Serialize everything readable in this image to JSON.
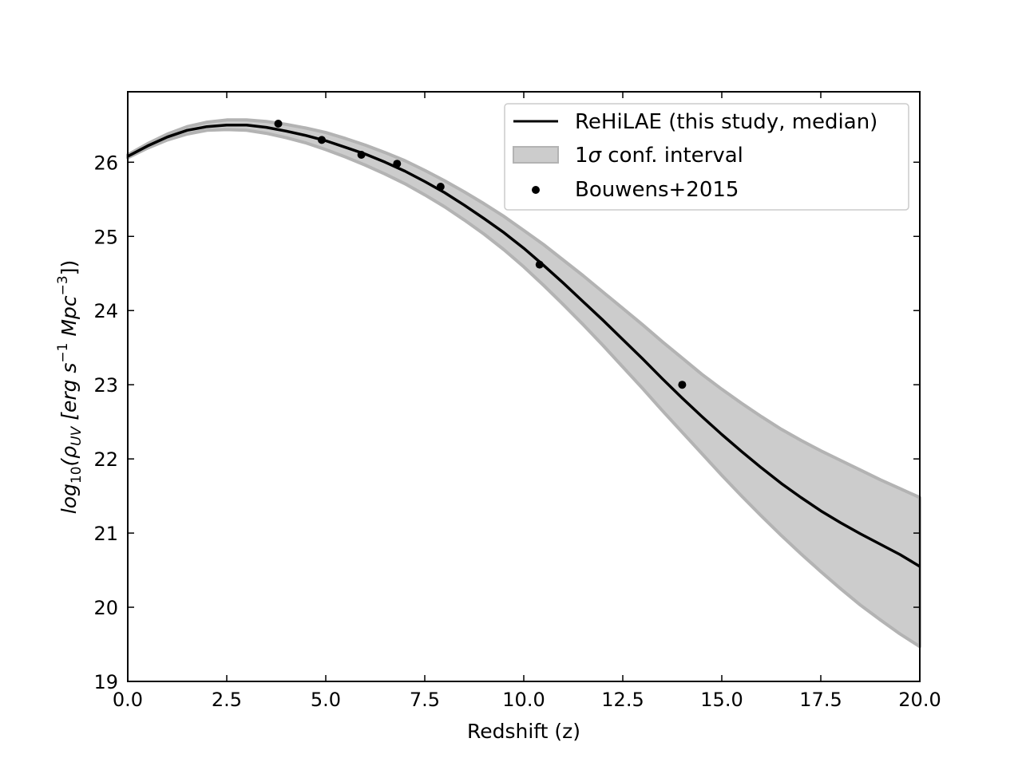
{
  "chart_data": {
    "type": "line",
    "xlabel": "Redshift (z)",
    "ylabel": {
      "prefix": "log",
      "log_sub": "10",
      "open": "(ρ",
      "rho_sub": "UV",
      "units_a": " [erg s",
      "sup1": "−1",
      "units_b": " Mpc",
      "sup2": "−3",
      "close": "])"
    },
    "xlim": [
      0.0,
      20.0
    ],
    "ylim": [
      19,
      26.95
    ],
    "xticks": [
      0.0,
      2.5,
      5.0,
      7.5,
      10.0,
      12.5,
      15.0,
      17.5,
      20.0
    ],
    "xtick_labels": [
      "0.0",
      "2.5",
      "5.0",
      "7.5",
      "10.0",
      "12.5",
      "15.0",
      "17.5",
      "20.0"
    ],
    "yticks": [
      19,
      20,
      21,
      22,
      23,
      24,
      25,
      26
    ],
    "ytick_labels": [
      "19",
      "20",
      "21",
      "22",
      "23",
      "24",
      "25",
      "26"
    ],
    "grid": false,
    "legend_position": "top-right",
    "colors": {
      "median": "#000000",
      "band_fill": "#cccccc",
      "band_edge": "#b3b3b3",
      "points": "#000000"
    },
    "series": [
      {
        "name": "ReHiLAE (this study, median)",
        "kind": "line",
        "x": [
          0.0,
          0.5,
          1.0,
          1.5,
          2.0,
          2.5,
          3.0,
          3.5,
          4.0,
          4.5,
          5.0,
          5.5,
          6.0,
          6.5,
          7.0,
          7.5,
          8.0,
          8.5,
          9.0,
          9.5,
          10.0,
          10.5,
          11.0,
          11.5,
          12.0,
          12.5,
          13.0,
          13.5,
          14.0,
          14.5,
          15.0,
          15.5,
          16.0,
          16.5,
          17.0,
          17.5,
          18.0,
          18.5,
          19.0,
          19.5,
          20.0
        ],
        "y": [
          26.08,
          26.22,
          26.34,
          26.43,
          26.48,
          26.5,
          26.5,
          26.47,
          26.42,
          26.36,
          26.29,
          26.2,
          26.11,
          26.0,
          25.88,
          25.74,
          25.59,
          25.42,
          25.24,
          25.05,
          24.84,
          24.61,
          24.37,
          24.12,
          23.87,
          23.61,
          23.35,
          23.08,
          22.82,
          22.57,
          22.33,
          22.1,
          21.88,
          21.67,
          21.48,
          21.3,
          21.14,
          20.99,
          20.85,
          20.71,
          20.55
        ]
      },
      {
        "name": "1σ conf. interval",
        "kind": "band",
        "x": [
          0.0,
          0.5,
          1.0,
          1.5,
          2.0,
          2.5,
          3.0,
          3.5,
          4.0,
          4.5,
          5.0,
          5.5,
          6.0,
          6.5,
          7.0,
          7.5,
          8.0,
          8.5,
          9.0,
          9.5,
          10.0,
          10.5,
          11.0,
          11.5,
          12.0,
          12.5,
          13.0,
          13.5,
          14.0,
          14.5,
          15.0,
          15.5,
          16.0,
          16.5,
          17.0,
          17.5,
          18.0,
          18.5,
          19.0,
          19.5,
          20.0
        ],
        "upper": [
          26.1,
          26.25,
          26.38,
          26.48,
          26.54,
          26.57,
          26.57,
          26.55,
          26.51,
          26.46,
          26.4,
          26.32,
          26.23,
          26.13,
          26.02,
          25.89,
          25.75,
          25.6,
          25.44,
          25.27,
          25.08,
          24.89,
          24.68,
          24.47,
          24.25,
          24.03,
          23.81,
          23.58,
          23.36,
          23.14,
          22.94,
          22.75,
          22.57,
          22.4,
          22.25,
          22.11,
          21.98,
          21.85,
          21.72,
          21.6,
          21.48
        ],
        "lower": [
          26.06,
          26.19,
          26.3,
          26.38,
          26.43,
          26.44,
          26.43,
          26.39,
          26.33,
          26.26,
          26.17,
          26.07,
          25.96,
          25.84,
          25.71,
          25.56,
          25.4,
          25.22,
          25.03,
          24.82,
          24.59,
          24.34,
          24.08,
          23.81,
          23.53,
          23.24,
          22.95,
          22.65,
          22.36,
          22.07,
          21.78,
          21.5,
          21.23,
          20.97,
          20.72,
          20.48,
          20.25,
          20.03,
          19.83,
          19.64,
          19.47
        ]
      },
      {
        "name": "Bouwens+2015",
        "kind": "scatter",
        "x": [
          3.8,
          4.9,
          5.9,
          6.8,
          7.9,
          10.4,
          14.0
        ],
        "y": [
          26.52,
          26.3,
          26.1,
          25.98,
          25.67,
          24.62,
          23.0
        ]
      }
    ]
  }
}
